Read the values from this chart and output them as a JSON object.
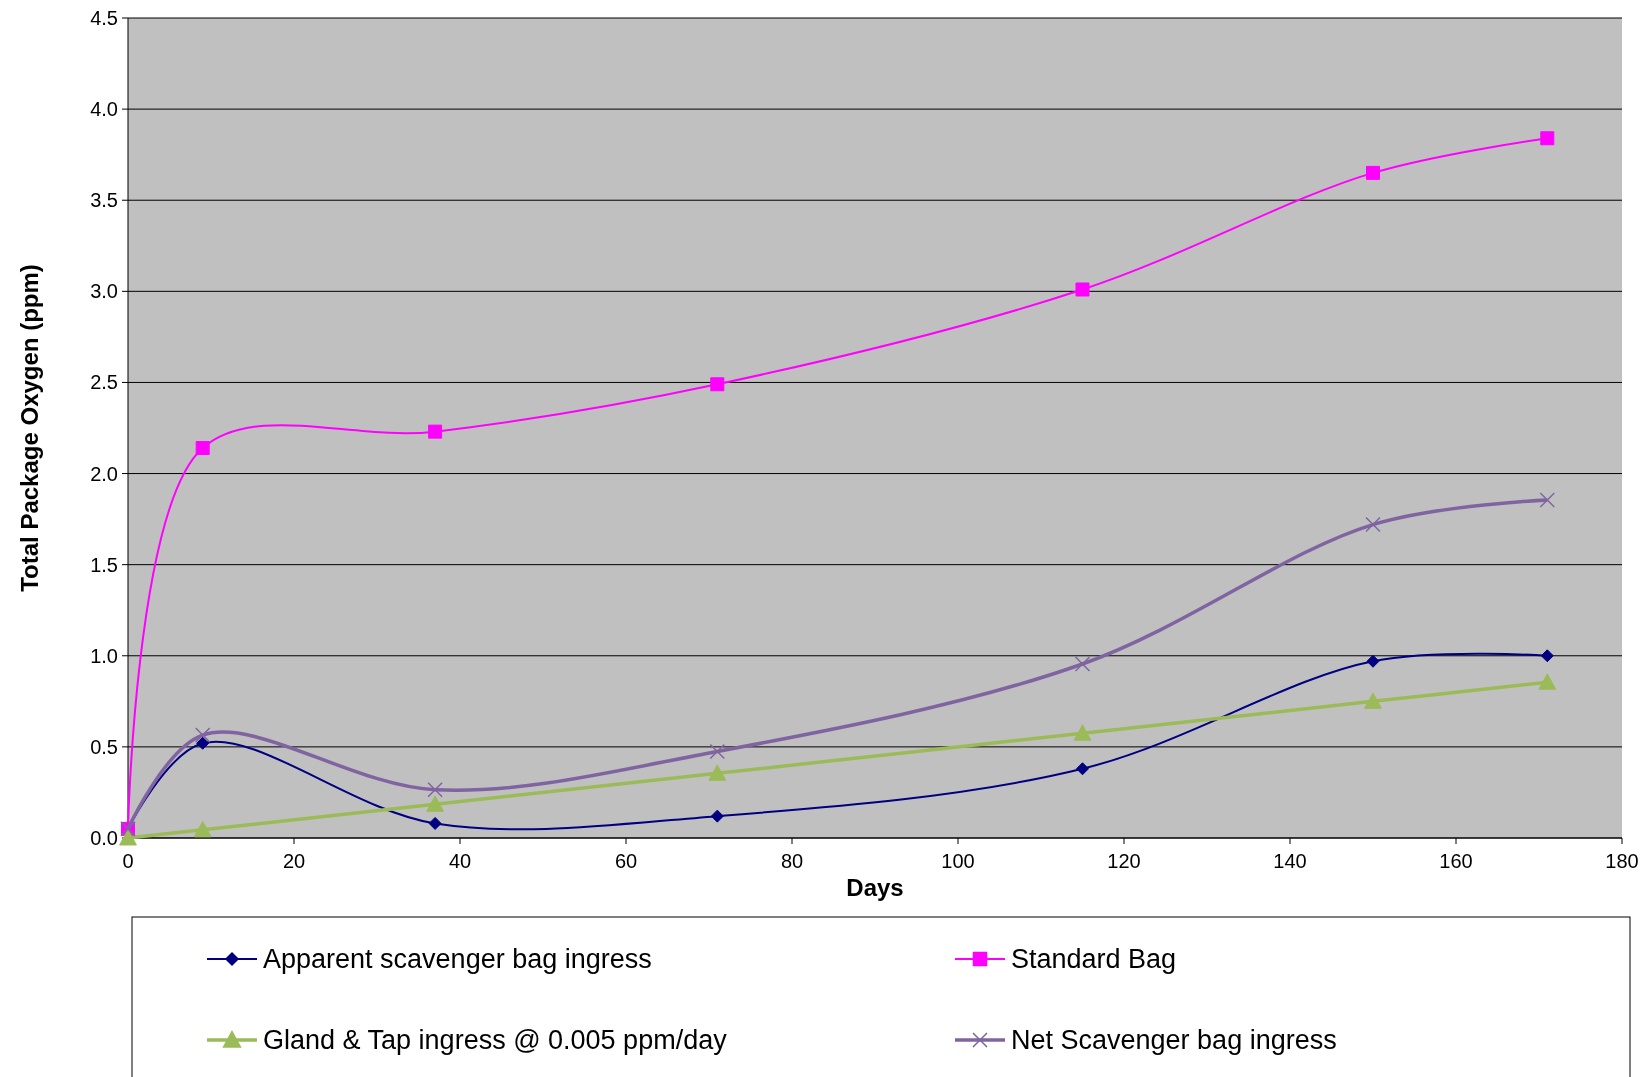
{
  "chart_data": {
    "type": "line",
    "xlabel": "Days",
    "ylabel": "Total Package Oxygen (ppm)",
    "x": [
      0,
      9,
      37,
      71,
      115,
      150,
      171
    ],
    "xlim": [
      0,
      180
    ],
    "xticks": [
      0,
      20,
      40,
      60,
      80,
      100,
      120,
      140,
      160,
      180
    ],
    "ylim": [
      0,
      4.5
    ],
    "yticks": [
      {
        "value": 0,
        "label": "0.0"
      },
      {
        "value": 0.5,
        "label": "0.5"
      },
      {
        "value": 1,
        "label": "1.0"
      },
      {
        "value": 1.5,
        "label": "1.5"
      },
      {
        "value": 2,
        "label": "2.0"
      },
      {
        "value": 2.5,
        "label": "2.5"
      },
      {
        "value": 3,
        "label": "3.0"
      },
      {
        "value": 3.5,
        "label": "3.5"
      },
      {
        "value": 4,
        "label": "4.0"
      },
      {
        "value": 4.5,
        "label": "4.5"
      }
    ],
    "grid": "y",
    "legend": "bottom",
    "series": [
      {
        "name": "Apparent scavenger bag ingress",
        "color": "#000080",
        "marker": "diamond",
        "values": [
          0.05,
          0.52,
          0.08,
          0.12,
          0.38,
          0.97,
          1.0
        ]
      },
      {
        "name": "Standard Bag",
        "color": "#ff00ff",
        "marker": "square",
        "values": [
          0.05,
          2.14,
          2.23,
          2.49,
          3.01,
          3.65,
          3.84
        ]
      },
      {
        "name": "Gland & Tap ingress @ 0.005 ppm/day",
        "color": "#9bbb59",
        "marker": "triangle",
        "values": [
          0,
          0.045,
          0.185,
          0.355,
          0.575,
          0.75,
          0.855
        ]
      },
      {
        "name": "Net Scavenger bag ingress",
        "color": "#8064a2",
        "marker": "cross",
        "values": [
          0.05,
          0.565,
          0.265,
          0.475,
          0.955,
          1.72,
          1.855
        ]
      }
    ]
  }
}
